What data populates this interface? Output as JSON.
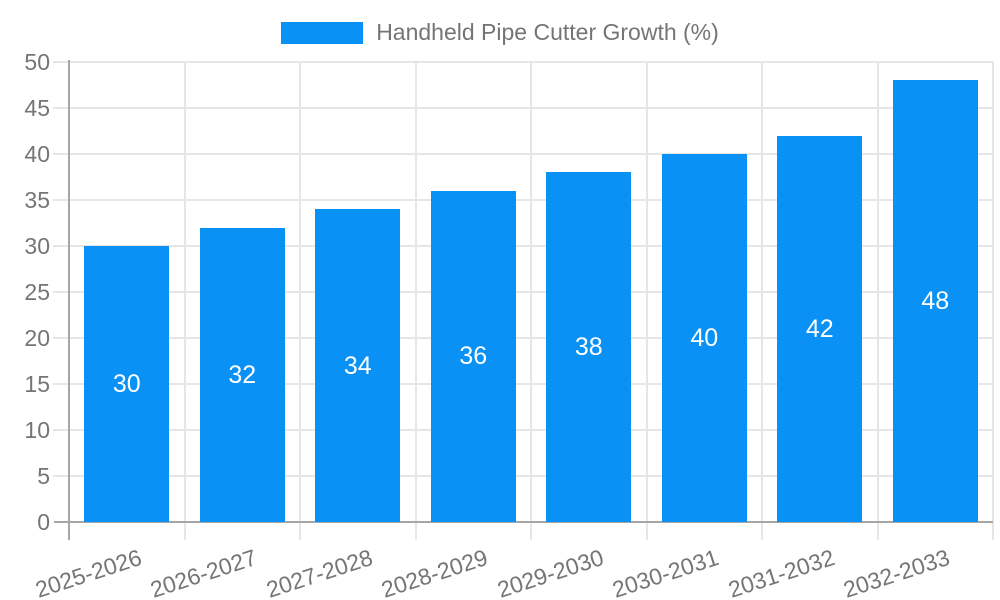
{
  "legend": {
    "label": "Handheld Pipe Cutter Growth (%)"
  },
  "colors": {
    "bar": "#0991f5",
    "grid": "#e6e6e6",
    "axis": "#a6a6a6",
    "axis_text": "#757575",
    "bar_label_text": "#ffffff",
    "background": "#ffffff"
  },
  "chart_data": {
    "type": "bar",
    "title": "Handheld Pipe Cutter Growth (%)",
    "categories": [
      "2025-2026",
      "2026-2027",
      "2027-2028",
      "2028-2029",
      "2029-2030",
      "2030-2031",
      "2031-2032",
      "2032-2033"
    ],
    "values": [
      30,
      32,
      34,
      36,
      38,
      40,
      42,
      48
    ],
    "xlabel": "",
    "ylabel": "",
    "ylim": [
      0,
      50
    ],
    "ytick_step": 5,
    "yticks": [
      0,
      5,
      10,
      15,
      20,
      25,
      30,
      35,
      40,
      45,
      50
    ],
    "grid": true,
    "legend_position": "top-center",
    "bar_value_labels": true,
    "x_tick_rotation_deg": -18
  }
}
